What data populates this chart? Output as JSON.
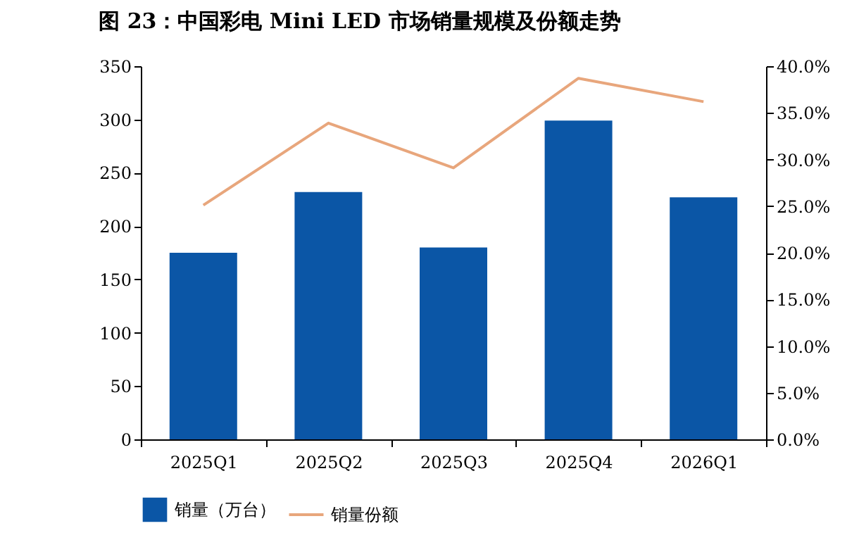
{
  "chart_data": {
    "type": "bar",
    "title": "图 23：中国彩电 Mini LED 市场销量规模及份额走势",
    "categories": [
      "2025Q1",
      "2025Q2",
      "2025Q3",
      "2025Q4",
      "2026Q1"
    ],
    "series": [
      {
        "name": "销量（万台）",
        "color": "#0b56a6",
        "values": [
          175,
          232,
          180,
          299,
          227
        ]
      },
      {
        "name": "销量份额",
        "type": "line",
        "axis": "y2",
        "color": "#e8a67c",
        "values": [
          25.1,
          33.9,
          29.1,
          38.7,
          36.2
        ]
      }
    ],
    "ylim": [
      0,
      350
    ],
    "yticks": [
      0,
      50,
      100,
      150,
      200,
      250,
      300,
      350
    ],
    "y2lim": [
      0,
      40
    ],
    "y2ticks": [
      {
        "value": 0,
        "label": "0.0%"
      },
      {
        "value": 5,
        "label": "5.0%"
      },
      {
        "value": 10,
        "label": "10.0%"
      },
      {
        "value": 15,
        "label": "15.0%"
      },
      {
        "value": 20,
        "label": "20.0%"
      },
      {
        "value": 25,
        "label": "25.0%"
      },
      {
        "value": 30,
        "label": "30.0%"
      },
      {
        "value": 35,
        "label": "35.0%"
      },
      {
        "value": 40,
        "label": "40.0%"
      }
    ],
    "grid": false,
    "legend": "bottom"
  }
}
